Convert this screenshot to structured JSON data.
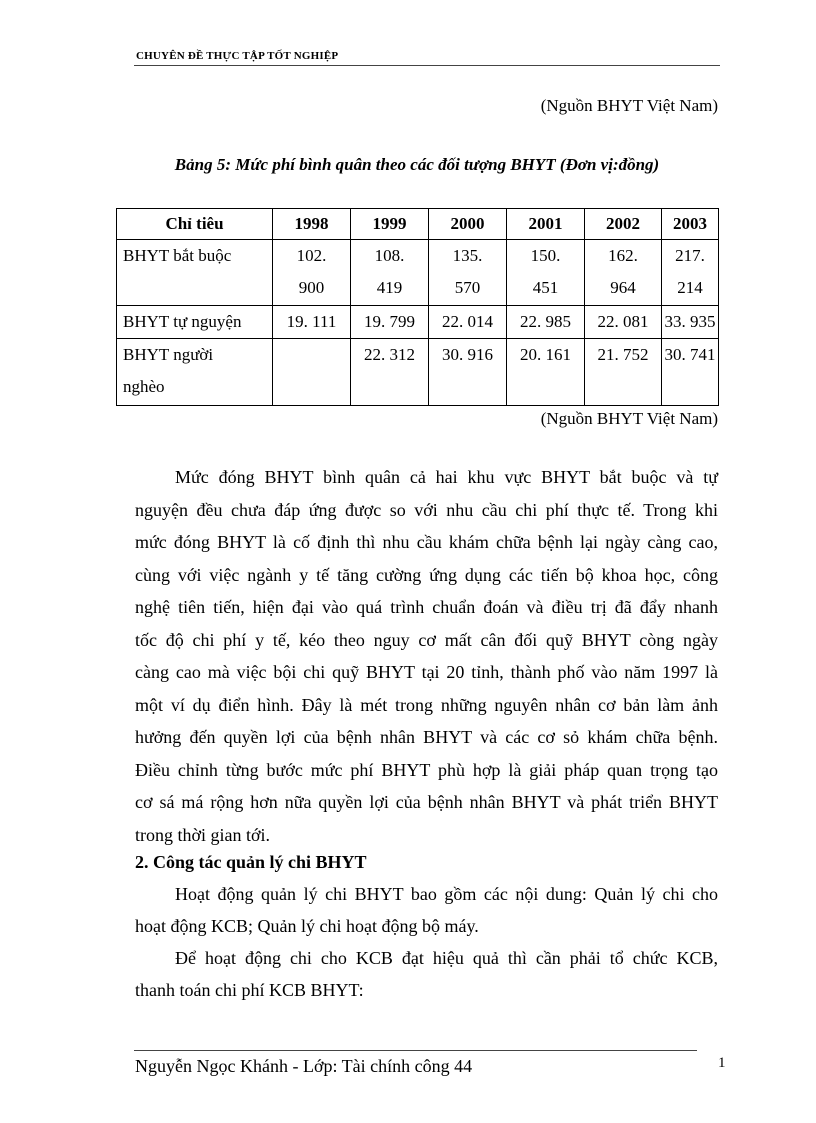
{
  "header": "CHUYÊN  ĐỀ THỰC TẬP TỐT NGHIỆP",
  "source_top": "(Nguồn BHYT Việt Nam)",
  "caption": "Bảng 5: Mức phí bình quân theo các đối tượng BHYT (Đơn vị:đồng)",
  "table": {
    "headers": [
      "Chỉ tiêu",
      "1998",
      "1999",
      "2000",
      "2001",
      "2002",
      "2003"
    ],
    "rows": [
      {
        "label": "BHYT bắt buộc",
        "values": [
          "102. 900",
          "108. 419",
          "135. 570",
          "150. 451",
          "162. 964",
          "217. 214"
        ]
      },
      {
        "label": "BHYT tự nguyện",
        "values": [
          "19. 111",
          "19. 799",
          "22. 014",
          "22. 985",
          "22. 081",
          "33. 935"
        ]
      },
      {
        "label": "BHYT người nghèo",
        "values": [
          "",
          "22. 312",
          "30. 916",
          "20. 161",
          "21. 752",
          "30. 741"
        ]
      }
    ]
  },
  "source_bottom": "(Nguồn BHYT Việt Nam)",
  "body_lines": [
    "Mức đóng BHYT bình quân cả hai khu vực BHYT bắt buộc và tự",
    "nguyện  đều chưa đáp ứng được so với nhu  cầu chi phí thực tế. Trong khi",
    "mức đóng BHYT là cố định thì nhu cầu khám chữa bệnh lại ngày càng cao,",
    "cùng với việc ngành y tế tăng cường ứng dụng các tiến bộ khoa học, công",
    "nghệ tiên tiến, hiện đại vào quá trình chuẩn đoán và điều trị đã đẩy nhanh",
    "tốc độ chi phí y tế, kéo theo nguy cơ mất cân đối quỹ BHYT còng ngày",
    "càng cao mà việc bội chi quỹ BHYT tại 20 tỉnh, thành phố vào năm 1997 là",
    "một ví dụ điển hình. Đây là mét trong những nguyên nhân cơ bản làm ảnh",
    "hưởng đến quyền lợi của bệnh nhân BHYT và các cơ sỏ khám chữa bệnh.",
    "Điều chỉnh từng bước mức phí BHYT phù hợp là giải  pháp quan trọng tạo",
    "cơ sá má rộng hơn nữa quyền lợi của bệnh nhân BHYT và phát triển BHYT",
    "trong thời gian tới."
  ],
  "section_heading": "2. Công tác quản lý chi BHYT",
  "para2_lines": [
    "Hoạt động quản lý chi BHYT bao gồm các nội dung: Quản lý chi cho",
    "hoạt động KCB; Quản lý  chi hoạt động bộ máy."
  ],
  "para3_lines": [
    "Để hoạt động chi cho KCB đạt hiệu  quả thì cần phải tổ chức KCB,",
    "thanh toán chi phí KCB BHYT:"
  ],
  "footer": "Nguyễn Ngọc Khánh - Lớp: Tài chính công 44",
  "page_number": "1"
}
